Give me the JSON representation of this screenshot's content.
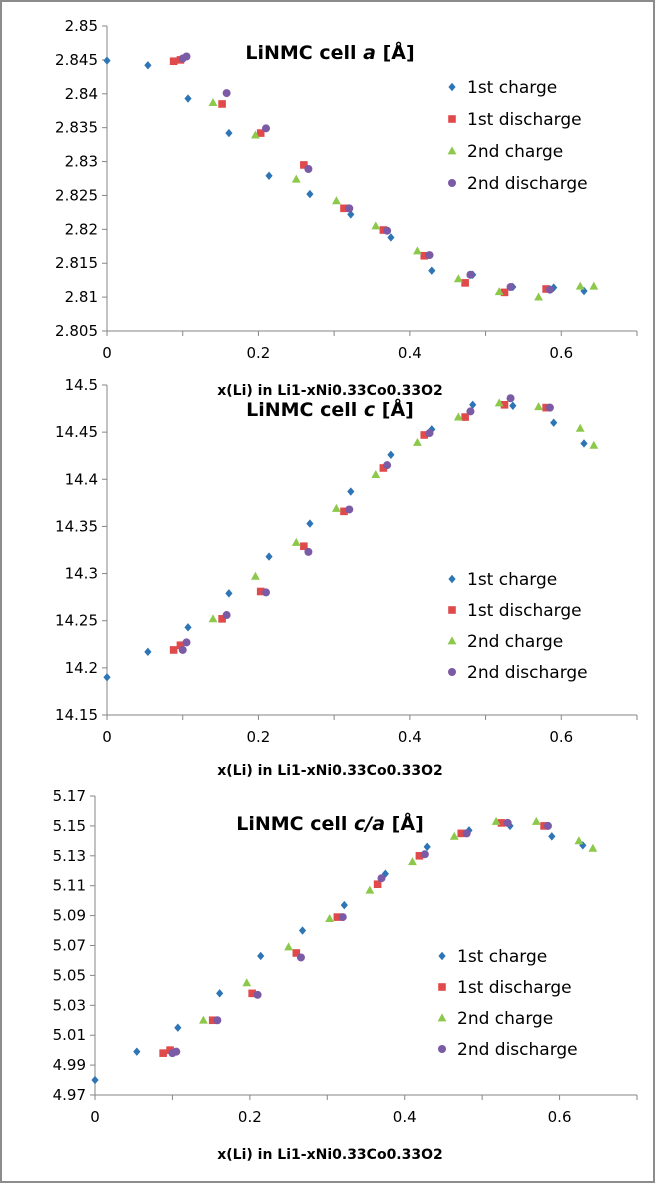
{
  "chart_data": [
    {
      "type": "scatter",
      "title": "LiNMC cell a [Å]",
      "title_parts": [
        "LiNMC cell ",
        "a",
        " [Å]"
      ],
      "xlabel": "x(Li) in Li1-xNi0.33Co0.33O2",
      "ylabel": "",
      "xlim": [
        0,
        0.7
      ],
      "ylim": [
        2.805,
        2.85
      ],
      "xticks": [
        "0",
        "0.2",
        "0.4",
        "0.6"
      ],
      "yticks": [
        "2.805",
        "2.81",
        "2.815",
        "2.82",
        "2.825",
        "2.83",
        "2.835",
        "2.84",
        "2.845",
        "2.85"
      ],
      "grid": false,
      "legend_position": "top-right",
      "series": [
        {
          "name": "1st charge",
          "color": "#2e75b6",
          "marker": "diamond",
          "x": [
            0,
            0.054,
            0.107,
            0.161,
            0.214,
            0.268,
            0.322,
            0.375,
            0.429,
            0.483,
            0.536,
            0.59,
            0.63
          ],
          "y": [
            2.8449,
            2.8442,
            2.8393,
            2.8342,
            2.8279,
            2.8252,
            2.8222,
            2.8188,
            2.8139,
            2.8133,
            2.8115,
            2.8114,
            2.8109
          ]
        },
        {
          "name": "1st discharge",
          "color": "#e04a4a",
          "marker": "square",
          "x": [
            0.088,
            0.097,
            0.152,
            0.203,
            0.26,
            0.313,
            0.365,
            0.419,
            0.473,
            0.525,
            0.58
          ],
          "y": [
            2.8448,
            2.845,
            2.8385,
            2.8342,
            2.8295,
            2.8231,
            2.8199,
            2.8161,
            2.8121,
            2.8107,
            2.8112
          ]
        },
        {
          "name": "2nd charge",
          "color": "#8cc84a",
          "marker": "triangle",
          "x": [
            0.14,
            0.196,
            0.25,
            0.303,
            0.355,
            0.41,
            0.464,
            0.518,
            0.57,
            0.625,
            0.643
          ],
          "y": [
            2.8387,
            2.8339,
            2.8274,
            2.8242,
            2.8205,
            2.8168,
            2.8127,
            2.8108,
            2.81,
            2.8116,
            2.8116
          ]
        },
        {
          "name": "2nd discharge",
          "color": "#7b5aa6",
          "marker": "circle",
          "x": [
            0.1,
            0.105,
            0.158,
            0.21,
            0.266,
            0.32,
            0.37,
            0.426,
            0.48,
            0.533,
            0.585
          ],
          "y": [
            2.8452,
            2.8455,
            2.8401,
            2.8349,
            2.8289,
            2.8231,
            2.8198,
            2.8162,
            2.8133,
            2.8115,
            2.8111
          ]
        }
      ]
    },
    {
      "type": "scatter",
      "title": "LiNMC cell c [Å]",
      "title_parts": [
        "LiNMC cell ",
        "c",
        " [Å]"
      ],
      "xlabel": "x(Li) in Li1-xNi0.33Co0.33O2",
      "ylabel": "",
      "xlim": [
        0,
        0.7
      ],
      "ylim": [
        14.15,
        14.5
      ],
      "xticks": [
        "0",
        "0.2",
        "0.4",
        "0.6"
      ],
      "yticks": [
        "14.15",
        "14.2",
        "14.25",
        "14.3",
        "14.35",
        "14.4",
        "14.45",
        "14.5"
      ],
      "grid": false,
      "legend_position": "center-right",
      "series": [
        {
          "name": "1st charge",
          "color": "#2e75b6",
          "marker": "diamond",
          "x": [
            0,
            0.054,
            0.107,
            0.161,
            0.214,
            0.268,
            0.322,
            0.375,
            0.429,
            0.483,
            0.536,
            0.59,
            0.63
          ],
          "y": [
            14.19,
            14.217,
            14.243,
            14.279,
            14.318,
            14.353,
            14.387,
            14.426,
            14.453,
            14.479,
            14.478,
            14.46,
            14.438
          ]
        },
        {
          "name": "1st discharge",
          "color": "#e04a4a",
          "marker": "square",
          "x": [
            0.088,
            0.097,
            0.152,
            0.203,
            0.26,
            0.313,
            0.365,
            0.419,
            0.473,
            0.525,
            0.58
          ],
          "y": [
            14.219,
            14.224,
            14.252,
            14.281,
            14.329,
            14.366,
            14.412,
            14.447,
            14.466,
            14.479,
            14.476
          ]
        },
        {
          "name": "2nd charge",
          "color": "#8cc84a",
          "marker": "triangle",
          "x": [
            0.14,
            0.196,
            0.25,
            0.303,
            0.355,
            0.41,
            0.464,
            0.518,
            0.57,
            0.625,
            0.643
          ],
          "y": [
            14.252,
            14.297,
            14.333,
            14.369,
            14.405,
            14.439,
            14.466,
            14.481,
            14.477,
            14.454,
            14.436
          ]
        },
        {
          "name": "2nd discharge",
          "color": "#7b5aa6",
          "marker": "circle",
          "x": [
            0.1,
            0.105,
            0.158,
            0.21,
            0.266,
            0.32,
            0.37,
            0.426,
            0.48,
            0.533,
            0.585
          ],
          "y": [
            14.219,
            14.227,
            14.256,
            14.28,
            14.323,
            14.368,
            14.415,
            14.449,
            14.472,
            14.486,
            14.476
          ]
        }
      ]
    },
    {
      "type": "scatter",
      "title": "LiNMC cell c/a [Å]",
      "title_parts": [
        "LiNMC cell ",
        "c/a",
        " [Å]"
      ],
      "xlabel": "x(Li) in Li1-xNi0.33Co0.33O2",
      "ylabel": "",
      "xlim": [
        0,
        0.7
      ],
      "ylim": [
        4.97,
        5.17
      ],
      "xticks": [
        "0",
        "0.2",
        "0.4",
        "0.6"
      ],
      "yticks": [
        "4.97",
        "4.99",
        "5.01",
        "5.03",
        "5.05",
        "5.07",
        "5.09",
        "5.11",
        "5.13",
        "5.15",
        "5.17"
      ],
      "grid": false,
      "legend_position": "center-right",
      "series": [
        {
          "name": "1st charge",
          "color": "#2e75b6",
          "marker": "diamond",
          "x": [
            0,
            0.054,
            0.107,
            0.161,
            0.214,
            0.268,
            0.322,
            0.375,
            0.429,
            0.483,
            0.536,
            0.59,
            0.63
          ],
          "y": [
            4.98,
            4.999,
            5.015,
            5.038,
            5.063,
            5.08,
            5.097,
            5.118,
            5.136,
            5.147,
            5.15,
            5.143,
            5.137
          ]
        },
        {
          "name": "1st discharge",
          "color": "#e04a4a",
          "marker": "square",
          "x": [
            0.088,
            0.097,
            0.152,
            0.203,
            0.26,
            0.313,
            0.365,
            0.419,
            0.473,
            0.525,
            0.58
          ],
          "y": [
            4.998,
            5.0,
            5.02,
            5.038,
            5.065,
            5.089,
            5.111,
            5.13,
            5.145,
            5.152,
            5.15
          ]
        },
        {
          "name": "2nd charge",
          "color": "#8cc84a",
          "marker": "triangle",
          "x": [
            0.14,
            0.196,
            0.25,
            0.303,
            0.355,
            0.41,
            0.464,
            0.518,
            0.57,
            0.625,
            0.643
          ],
          "y": [
            5.02,
            5.045,
            5.069,
            5.088,
            5.107,
            5.126,
            5.143,
            5.153,
            5.153,
            5.14,
            5.135
          ]
        },
        {
          "name": "2nd discharge",
          "color": "#7b5aa6",
          "marker": "circle",
          "x": [
            0.1,
            0.105,
            0.158,
            0.21,
            0.266,
            0.32,
            0.37,
            0.426,
            0.48,
            0.533,
            0.585
          ],
          "y": [
            4.998,
            4.999,
            5.02,
            5.037,
            5.062,
            5.089,
            5.115,
            5.131,
            5.145,
            5.152,
            5.15
          ]
        }
      ]
    }
  ]
}
